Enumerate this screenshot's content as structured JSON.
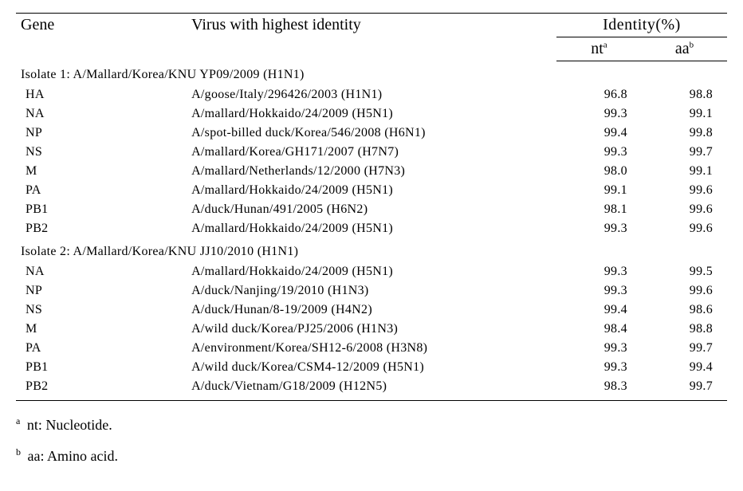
{
  "header": {
    "gene": "Gene",
    "virus": "Virus with highest identity",
    "identity": "Identity(%)",
    "nt": "nt",
    "nt_sup": "a",
    "aa": "aa",
    "aa_sup": "b"
  },
  "sections": [
    {
      "label": "Isolate 1: A/Mallard/Korea/KNU YP09/2009 (H1N1)",
      "rows": [
        {
          "gene": "HA",
          "virus": "A/goose/Italy/296426/2003 (H1N1)",
          "nt": "96.8",
          "aa": "98.8"
        },
        {
          "gene": "NA",
          "virus": "A/mallard/Hokkaido/24/2009 (H5N1)",
          "nt": "99.3",
          "aa": "99.1"
        },
        {
          "gene": "NP",
          "virus": "A/spot-billed duck/Korea/546/2008 (H6N1)",
          "nt": "99.4",
          "aa": "99.8"
        },
        {
          "gene": "NS",
          "virus": "A/mallard/Korea/GH171/2007 (H7N7)",
          "nt": "99.3",
          "aa": "99.7"
        },
        {
          "gene": "M",
          "virus": "A/mallard/Netherlands/12/2000 (H7N3)",
          "nt": "98.0",
          "aa": "99.1"
        },
        {
          "gene": "PA",
          "virus": "A/mallard/Hokkaido/24/2009 (H5N1)",
          "nt": "99.1",
          "aa": "99.6"
        },
        {
          "gene": "PB1",
          "virus": "A/duck/Hunan/491/2005 (H6N2)",
          "nt": "98.1",
          "aa": "99.6"
        },
        {
          "gene": "PB2",
          "virus": "A/mallard/Hokkaido/24/2009 (H5N1)",
          "nt": "99.3",
          "aa": "99.6"
        }
      ]
    },
    {
      "label": "Isolate 2: A/Mallard/Korea/KNU JJ10/2010 (H1N1)",
      "rows": [
        {
          "gene": "NA",
          "virus": "A/mallard/Hokkaido/24/2009 (H5N1)",
          "nt": "99.3",
          "aa": "99.5"
        },
        {
          "gene": "NP",
          "virus": "A/duck/Nanjing/19/2010 (H1N3)",
          "nt": "99.3",
          "aa": "99.6"
        },
        {
          "gene": "NS",
          "virus": "A/duck/Hunan/8-19/2009 (H4N2)",
          "nt": "99.4",
          "aa": "98.6"
        },
        {
          "gene": "M",
          "virus": "A/wild duck/Korea/PJ25/2006 (H1N3)",
          "nt": "98.4",
          "aa": "98.8"
        },
        {
          "gene": "PA",
          "virus": "A/environment/Korea/SH12-6/2008 (H3N8)",
          "nt": "99.3",
          "aa": "99.7"
        },
        {
          "gene": "PB1",
          "virus": "A/wild duck/Korea/CSM4-12/2009 (H5N1)",
          "nt": "99.3",
          "aa": "99.4"
        },
        {
          "gene": "PB2",
          "virus": "A/duck/Vietnam/G18/2009 (H12N5)",
          "nt": "98.3",
          "aa": "99.7"
        }
      ]
    }
  ],
  "footnotes": [
    {
      "sup": "a",
      "text": "nt: Nucleotide."
    },
    {
      "sup": "b",
      "text": "aa: Amino acid."
    }
  ],
  "style": {
    "font_family": "Times New Roman",
    "header_fontsize_pt": 20,
    "body_fontsize_pt": 16,
    "footnote_fontsize_pt": 18,
    "text_color": "#000000",
    "background_color": "#ffffff",
    "rule_color": "#000000",
    "column_widths_pct": [
      24,
      52,
      12,
      12
    ],
    "table_type": "table"
  }
}
